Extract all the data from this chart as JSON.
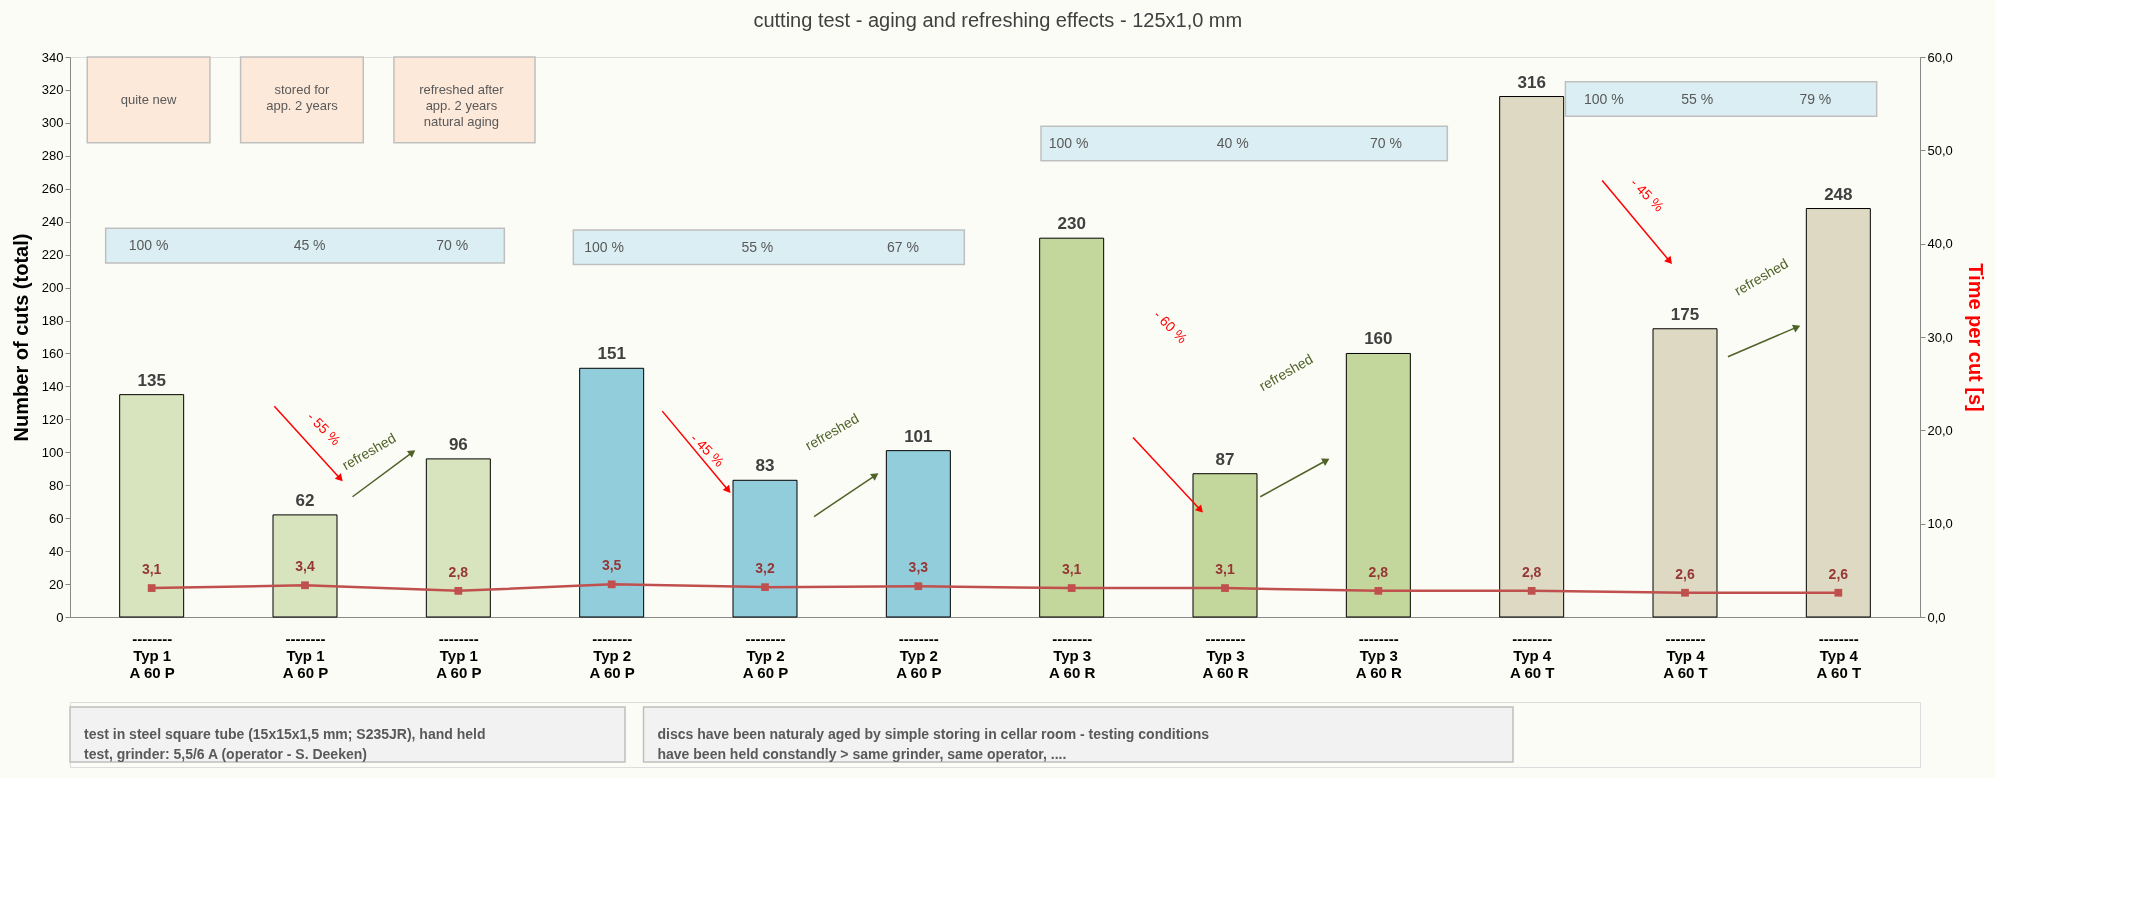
{
  "chart_data": {
    "type": "bar",
    "title": "cutting test - aging and refreshing effects - 125x1,0 mm",
    "categories": [
      "--------\nTyp 1\nA 60 P",
      "--------\nTyp 1\nA 60 P",
      "--------\nTyp 1\nA 60 P",
      "--------\nTyp 2\nA 60 P",
      "--------\nTyp 2\nA 60 P",
      "--------\nTyp 2\nA 60 P",
      "--------\nTyp 3\nA 60 R",
      "--------\nTyp 3\nA 60 R",
      "--------\nTyp 3\nA 60 R",
      "--------\nTyp 4\nA 60 T",
      "--------\nTyp 4\nA 60 T",
      "--------\nTyp 4\nA 60 T"
    ],
    "ylabel": "Number of cuts (total)",
    "y2label": "Time  per cut  [s]",
    "ylim": [
      0,
      340
    ],
    "yticks": [
      0,
      20,
      40,
      60,
      80,
      100,
      120,
      140,
      160,
      180,
      200,
      220,
      240,
      260,
      280,
      300,
      320,
      340
    ],
    "y2lim": [
      0,
      60
    ],
    "y2ticks": [
      {
        "value": 0,
        "label": "0,0"
      },
      {
        "value": 10,
        "label": "10,0"
      },
      {
        "value": 20,
        "label": "20,0"
      },
      {
        "value": 30,
        "label": "30,0"
      },
      {
        "value": 40,
        "label": "40,0"
      },
      {
        "value": 50,
        "label": "50,0"
      },
      {
        "value": 60,
        "label": "60,0"
      }
    ],
    "grid": false,
    "series": [
      {
        "colors": [
          "#d7e4bd",
          "#d7e4bd",
          "#d7e4bd",
          "#92cddc",
          "#92cddc",
          "#92cddc",
          "#c3d69b",
          "#c3d69b",
          "#c3d69b",
          "#ddd9c3",
          "#ddd9c3",
          "#ddd9c3"
        ],
        "values": [
          135,
          62,
          96,
          151,
          83,
          101,
          230,
          87,
          160,
          316,
          175,
          248
        ],
        "value_labels": [
          "135",
          "62",
          "96",
          "151",
          "83",
          "101",
          "230",
          "87",
          "160",
          "316",
          "175",
          "248"
        ]
      },
      {
        "type": "line",
        "axis": "y2",
        "color": "#c0504d",
        "marker": "square",
        "values": [
          3.1,
          3.4,
          2.8,
          3.5,
          3.2,
          3.3,
          3.1,
          3.1,
          2.8,
          2.8,
          2.6,
          2.6
        ],
        "value_labels": [
          "3,1",
          "3,4",
          "2,8",
          "3,5",
          "3,2",
          "3,3",
          "3,1",
          "3,1",
          "2,8",
          "2,8",
          "2,6",
          "2,6"
        ]
      }
    ],
    "annotations": [
      "quite new",
      "stored for\napp. 2 years",
      "refreshed after\napp. 2 years\nnatural aging",
      "100 %",
      "45 %",
      "70 %",
      "100 %",
      "55 %",
      "67 %",
      "100 %",
      "40 %",
      "70 %",
      "100 %",
      "55 %",
      "79 %",
      "- 55 %",
      "refreshed",
      "- 45 %",
      "refreshed",
      "- 60 %",
      "refreshed",
      "- 45 %",
      "refreshed",
      "test in steel square tube (15x15x1,5 mm; S235JR), hand held\ntest, grinder: 5,5/6 A (operator - S. Deeken)",
      "discs have been naturaly aged by simple storing in cellar room - testing conditions\nhave been held constandly > same grinder, same operator, ...."
    ]
  }
}
